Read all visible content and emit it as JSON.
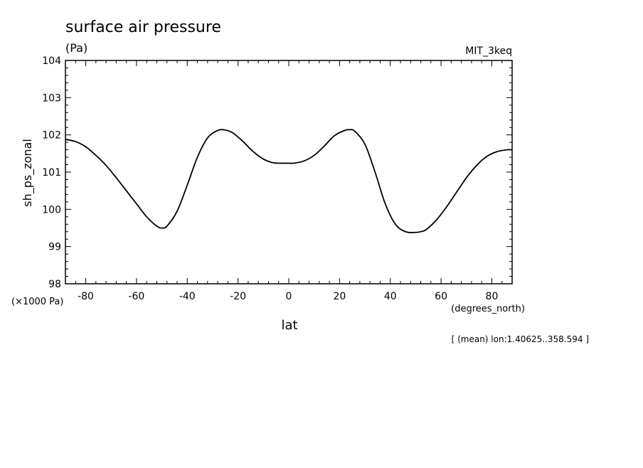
{
  "chart_data": {
    "type": "line",
    "title": "surface air pressure",
    "units": "(Pa)",
    "source_label": "MIT_3keq",
    "ylabel": "sh_ps_zonal",
    "y_multiplier_label": "(×1000 Pa)",
    "xlabel": "lat",
    "x_units_label": "(degrees_north)",
    "footnote": "[ (mean) lon:1.40625..358.594 ]",
    "xlim": [
      -88,
      88
    ],
    "ylim": [
      98,
      104
    ],
    "x_ticks": [
      -80,
      -60,
      -40,
      -20,
      0,
      20,
      40,
      60,
      80
    ],
    "x_tick_labels": [
      "-80",
      "-60",
      "-40",
      "-20",
      "0",
      "20",
      "40",
      "60",
      "80"
    ],
    "y_ticks": [
      98,
      99,
      100,
      101,
      102,
      103,
      104
    ],
    "y_tick_labels": [
      "98",
      "99",
      "100",
      "101",
      "102",
      "103",
      "104"
    ],
    "grid": false,
    "series": [
      {
        "x": [
          -88,
          -84,
          -80,
          -76,
          -72,
          -68,
          -64,
          -60,
          -56,
          -52,
          -50,
          -48,
          -44,
          -40,
          -36,
          -32,
          -28,
          -25,
          -22,
          -18,
          -14,
          -10,
          -6,
          -2,
          0,
          2,
          6,
          10,
          14,
          18,
          22,
          24,
          26,
          30,
          34,
          38,
          42,
          46,
          50,
          52,
          54,
          58,
          62,
          66,
          70,
          74,
          78,
          82,
          86,
          88
        ],
        "y": [
          101.88,
          101.82,
          101.68,
          101.45,
          101.18,
          100.85,
          100.5,
          100.15,
          99.8,
          99.55,
          99.5,
          99.55,
          99.95,
          100.65,
          101.4,
          101.92,
          102.12,
          102.13,
          102.05,
          101.82,
          101.55,
          101.35,
          101.25,
          101.24,
          101.24,
          101.24,
          101.3,
          101.45,
          101.7,
          101.98,
          102.12,
          102.14,
          102.1,
          101.75,
          101.0,
          100.15,
          99.6,
          99.4,
          99.38,
          99.4,
          99.45,
          99.7,
          100.05,
          100.45,
          100.85,
          101.18,
          101.42,
          101.55,
          101.6,
          101.6
        ]
      }
    ]
  }
}
